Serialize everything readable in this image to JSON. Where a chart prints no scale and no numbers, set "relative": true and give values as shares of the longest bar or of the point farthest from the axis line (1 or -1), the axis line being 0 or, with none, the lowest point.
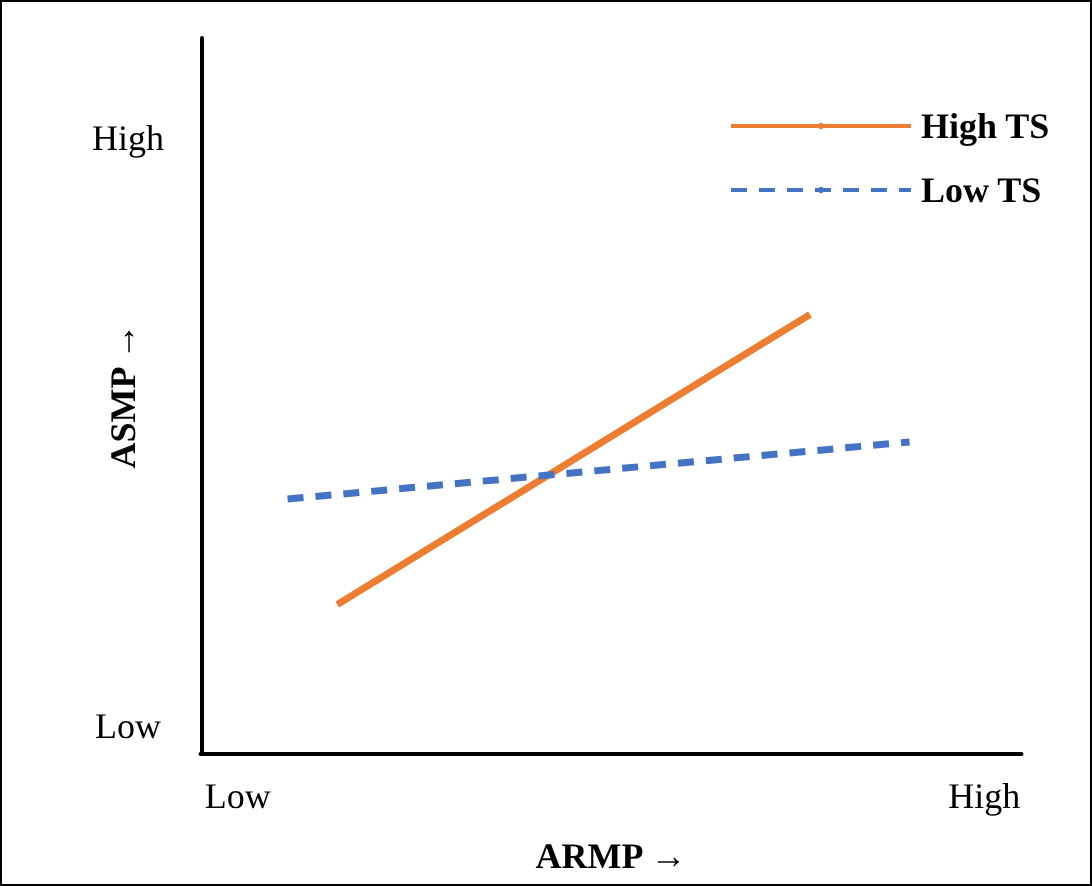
{
  "chart_data": {
    "type": "line",
    "xlabel": "ARMP →",
    "ylabel": "ASMP →",
    "relative": true,
    "annotations": [
      "High",
      "Low"
    ],
    "categories": [
      null,
      "Low",
      null,
      null,
      null,
      null,
      null,
      null,
      null,
      null,
      null,
      null,
      null,
      null,
      null,
      null,
      null,
      null,
      null,
      null,
      null,
      null,
      null,
      null,
      null,
      null,
      null,
      null,
      null,
      null,
      null,
      "High",
      null
    ],
    "series": [
      {
        "name": "High TS",
        "color": "#ed7d31",
        "line_style": "solid",
        "values": [
          null,
          null,
          null,
          null,
          null,
          0.34,
          null,
          null,
          null,
          null,
          null,
          null,
          null,
          null,
          null,
          null,
          null,
          null,
          null,
          null,
          null,
          null,
          null,
          null,
          1,
          null,
          null,
          null,
          null,
          null,
          null,
          null,
          null
        ]
      },
      {
        "name": "Low TS",
        "color": "#4472c4",
        "line_style": "dashed",
        "values": [
          null,
          null,
          null,
          0.58,
          null,
          null,
          null,
          null,
          null,
          null,
          null,
          null,
          null,
          null,
          null,
          null,
          null,
          null,
          null,
          null,
          null,
          null,
          null,
          null,
          null,
          null,
          null,
          null,
          0.71,
          null,
          null,
          null,
          null
        ]
      }
    ],
    "legend": "top right",
    "grid": false,
    "marker": "none"
  }
}
